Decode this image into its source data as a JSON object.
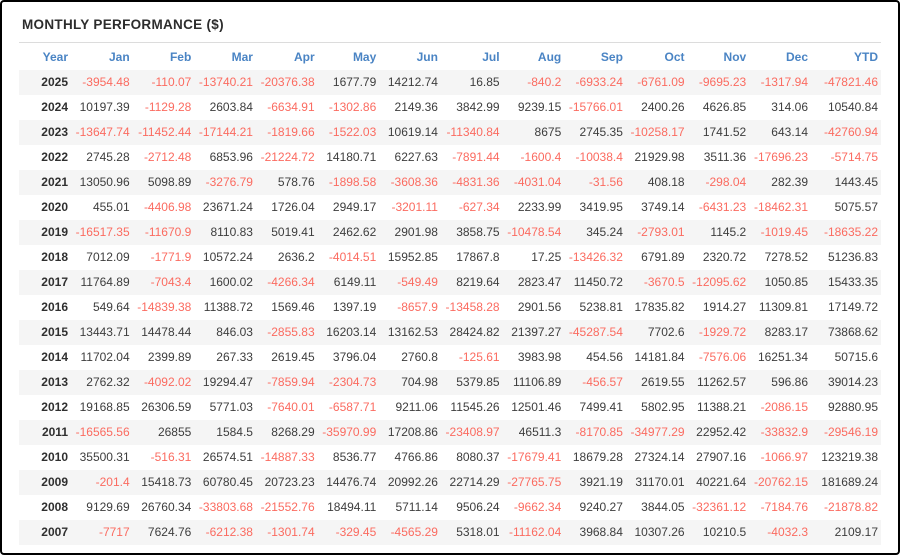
{
  "page": {
    "title": "MONTHLY PERFORMANCE ($)"
  },
  "colors": {
    "header_accent": "#4a84c4",
    "positive_value": "#3d3d3d",
    "negative_value": "#fb6b60",
    "year_label": "#2f2f2f",
    "row_stripe": "#f5f5f5",
    "divider": "#dcdcdc",
    "frame_border": "#000000"
  },
  "chart_data": {
    "type": "table",
    "title": "MONTHLY PERFORMANCE ($)",
    "columns": [
      "Year",
      "Jan",
      "Feb",
      "Mar",
      "Apr",
      "May",
      "Jun",
      "Jul",
      "Aug",
      "Sep",
      "Oct",
      "Nov",
      "Dec",
      "YTD"
    ],
    "rows": [
      {
        "year": "2025",
        "values": [
          -3954.48,
          -110.07,
          -13740.21,
          -20376.38,
          1677.79,
          14212.74,
          16.85,
          -840.2,
          -6933.24,
          -6761.09,
          -9695.23,
          -1317.94,
          -47821.46
        ]
      },
      {
        "year": "2024",
        "values": [
          10197.39,
          -1129.28,
          2603.84,
          -6634.91,
          -1302.86,
          2149.36,
          3842.99,
          9239.15,
          -15766.01,
          2400.26,
          4626.85,
          314.06,
          10540.84
        ]
      },
      {
        "year": "2023",
        "values": [
          -13647.74,
          -11452.44,
          -17144.21,
          -1819.66,
          -1522.03,
          10619.14,
          -11340.84,
          8675,
          2745.35,
          -10258.17,
          1741.52,
          643.14,
          -42760.94
        ]
      },
      {
        "year": "2022",
        "values": [
          2745.28,
          -2712.48,
          6853.96,
          -21224.72,
          14180.71,
          6227.63,
          -7891.44,
          -1600.4,
          -10038.4,
          21929.98,
          3511.36,
          -17696.23,
          -5714.75
        ]
      },
      {
        "year": "2021",
        "values": [
          13050.96,
          5098.89,
          -3276.79,
          578.76,
          -1898.58,
          -3608.36,
          -4831.36,
          -4031.04,
          -31.56,
          408.18,
          -298.04,
          282.39,
          1443.45
        ]
      },
      {
        "year": "2020",
        "values": [
          455.01,
          -4406.98,
          23671.24,
          1726.04,
          2949.17,
          -3201.11,
          -627.34,
          2233.99,
          3419.95,
          3749.14,
          -6431.23,
          -18462.31,
          5075.57
        ]
      },
      {
        "year": "2019",
        "values": [
          -16517.35,
          -11670.9,
          8110.83,
          5019.41,
          2462.62,
          2901.98,
          3858.75,
          -10478.54,
          345.24,
          -2793.01,
          1145.2,
          -1019.45,
          -18635.22
        ]
      },
      {
        "year": "2018",
        "values": [
          7012.09,
          -1771.9,
          10572.24,
          2636.2,
          -4014.51,
          15952.85,
          17867.8,
          17.25,
          -13426.32,
          6791.89,
          2320.72,
          7278.52,
          51236.83
        ]
      },
      {
        "year": "2017",
        "values": [
          11764.89,
          -7043.4,
          1600.02,
          -4266.34,
          6149.11,
          -549.49,
          8219.64,
          2823.47,
          11450.72,
          -3670.5,
          -12095.62,
          1050.85,
          15433.35
        ]
      },
      {
        "year": "2016",
        "values": [
          549.64,
          -14839.38,
          11388.72,
          1569.46,
          1397.19,
          -8657.9,
          -13458.28,
          2901.56,
          5238.81,
          17835.82,
          1914.27,
          11309.81,
          17149.72
        ]
      },
      {
        "year": "2015",
        "values": [
          13443.71,
          14478.44,
          846.03,
          -2855.83,
          16203.14,
          13162.53,
          28424.82,
          21397.27,
          -45287.54,
          7702.6,
          -1929.72,
          8283.17,
          73868.62
        ]
      },
      {
        "year": "2014",
        "values": [
          11702.04,
          2399.89,
          267.33,
          2619.45,
          3796.04,
          2760.8,
          -125.61,
          3983.98,
          454.56,
          14181.84,
          -7576.06,
          16251.34,
          50715.6
        ]
      },
      {
        "year": "2013",
        "values": [
          2762.32,
          -4092.02,
          19294.47,
          -7859.94,
          -2304.73,
          704.98,
          5379.85,
          11106.89,
          -456.57,
          2619.55,
          11262.57,
          596.86,
          39014.23
        ]
      },
      {
        "year": "2012",
        "values": [
          19168.85,
          26306.59,
          5771.03,
          -7640.01,
          -6587.71,
          9211.06,
          11545.26,
          12501.46,
          7499.41,
          5802.95,
          11388.21,
          -2086.15,
          92880.95
        ]
      },
      {
        "year": "2011",
        "values": [
          -16565.56,
          26855,
          1584.5,
          8268.29,
          -35970.99,
          17208.86,
          -23408.97,
          46511.3,
          -8170.85,
          -34977.29,
          22952.42,
          -33832.9,
          -29546.19
        ]
      },
      {
        "year": "2010",
        "values": [
          35500.31,
          -516.31,
          26574.51,
          -14887.33,
          8536.77,
          4766.86,
          8080.37,
          -17679.41,
          18679.28,
          27324.14,
          27907.16,
          -1066.97,
          123219.38
        ]
      },
      {
        "year": "2009",
        "values": [
          -201.4,
          15418.73,
          60780.45,
          20723.23,
          14476.74,
          20992.26,
          22714.29,
          -27765.75,
          3921.19,
          31170.01,
          40221.64,
          -20762.15,
          181689.24
        ]
      },
      {
        "year": "2008",
        "values": [
          9129.69,
          26760.34,
          -33803.68,
          -21552.76,
          18494.11,
          5711.14,
          9506.24,
          -9662.34,
          9240.27,
          3844.05,
          -32361.12,
          -7184.76,
          -21878.82
        ]
      },
      {
        "year": "2007",
        "values": [
          -7717,
          7624.76,
          -6212.38,
          -1301.74,
          -329.45,
          -4565.29,
          5318.01,
          -11162.04,
          3968.84,
          10307.26,
          10210.5,
          -4032.3,
          2109.17
        ]
      }
    ]
  }
}
